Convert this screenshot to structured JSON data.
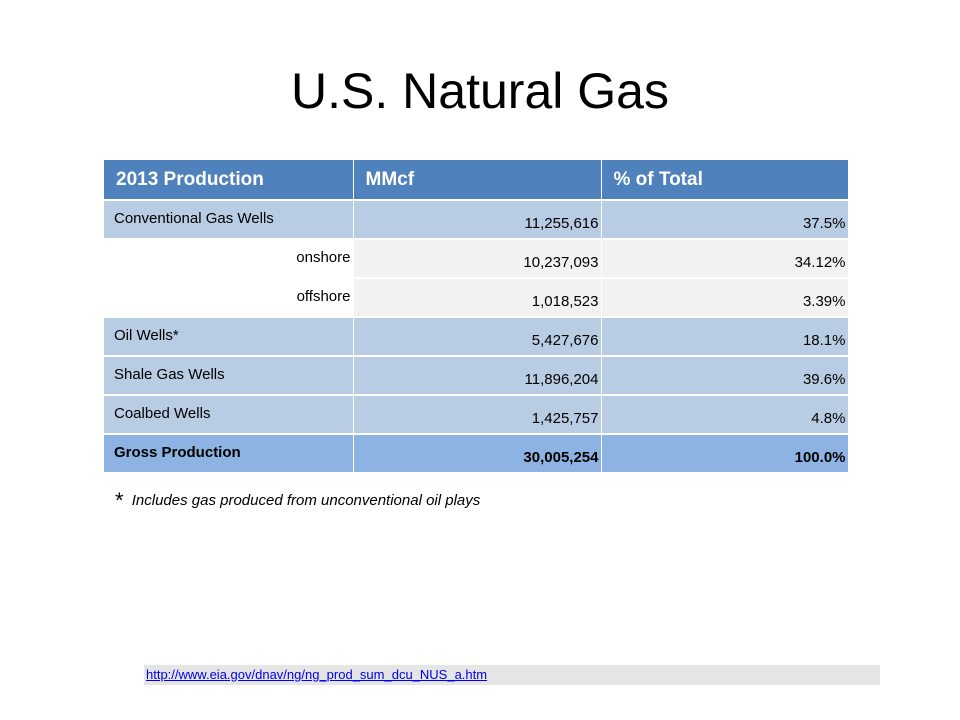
{
  "title": "U.S. Natural Gas",
  "table": {
    "headers": [
      "2013 Production",
      "MMcf",
      "% of Total"
    ],
    "rows": [
      {
        "label": "Conventional Gas Wells",
        "mmcf": "11,255,616",
        "pct": "37.5%"
      },
      {
        "label": "onshore",
        "mmcf": "10,237,093",
        "pct": "34.12%"
      },
      {
        "label": "offshore",
        "mmcf": "1,018,523",
        "pct": "3.39%"
      },
      {
        "label": "Oil Wells*",
        "mmcf": "5,427,676",
        "pct": "18.1%"
      },
      {
        "label": "Shale Gas Wells",
        "mmcf": "11,896,204",
        "pct": "39.6%"
      },
      {
        "label": "Coalbed Wells",
        "mmcf": "1,425,757",
        "pct": "4.8%"
      },
      {
        "label": "Gross Production",
        "mmcf": "30,005,254",
        "pct": "100.0%"
      }
    ]
  },
  "footnote": {
    "marker": "*",
    "text": "Includes gas produced from unconventional oil plays"
  },
  "source_link": "http://www.eia.gov/dnav/ng/ng_prod_sum_dcu_NUS_a.htm",
  "colors": {
    "header": "#4f81bd",
    "row_blue": "#b8cce4",
    "row_gray": "#f2f2f2",
    "row_total": "#8db3e2"
  }
}
